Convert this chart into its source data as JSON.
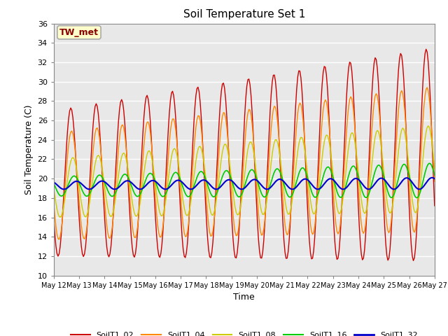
{
  "title": "Soil Temperature Set 1",
  "xlabel": "Time",
  "ylabel": "Soil Temperature (C)",
  "ylim": [
    10,
    36
  ],
  "yticks": [
    10,
    12,
    14,
    16,
    18,
    20,
    22,
    24,
    26,
    28,
    30,
    32,
    34,
    36
  ],
  "annotation_text": "TW_met",
  "annotation_bg": "#ffffcc",
  "annotation_border": "#aaaaaa",
  "annotation_text_color": "#880000",
  "series_colors": {
    "SoilT1_02": "#cc0000",
    "SoilT1_04": "#ff8800",
    "SoilT1_08": "#cccc00",
    "SoilT1_16": "#00cc00",
    "SoilT1_32": "#0000cc"
  },
  "legend_labels": [
    "SoilT1_02",
    "SoilT1_04",
    "SoilT1_08",
    "SoilT1_16",
    "SoilT1_32"
  ],
  "bg_color": "#ffffff",
  "plot_bg_color": "#e8e8e8",
  "start_day": 12,
  "end_day": 27,
  "xtick_days": [
    12,
    13,
    14,
    15,
    16,
    17,
    18,
    19,
    20,
    21,
    22,
    23,
    24,
    25,
    26,
    27
  ]
}
